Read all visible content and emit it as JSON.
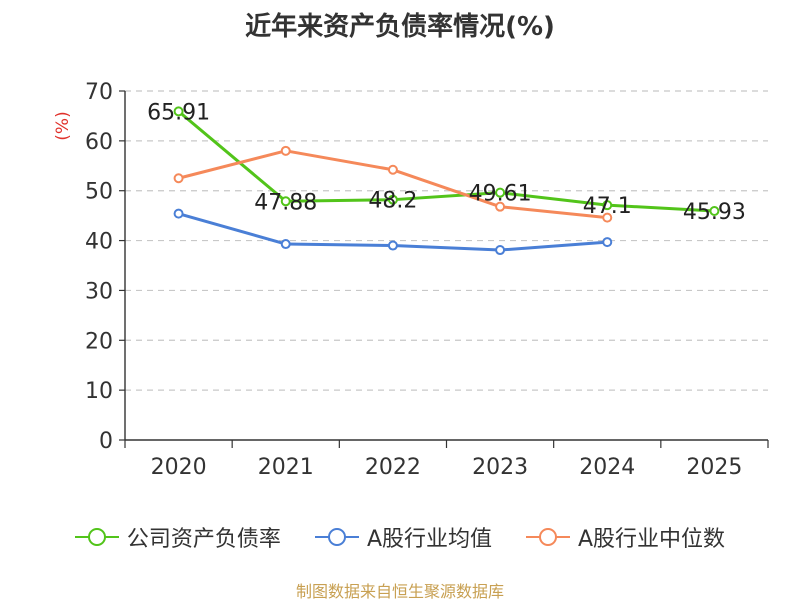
{
  "chart_data": {
    "type": "line",
    "title": "近年来资产负债率情况(%)",
    "ylabel": "(%)",
    "xlabel": "",
    "categories": [
      "2020",
      "2021",
      "2022",
      "2023",
      "2024",
      "2025"
    ],
    "ylim": [
      0,
      70
    ],
    "yticks": [
      0,
      10,
      20,
      30,
      40,
      50,
      60,
      70
    ],
    "grid": true,
    "legend_position": "bottom",
    "series": [
      {
        "name": "公司资产负债率",
        "color": "#52c41a",
        "values": [
          65.91,
          47.88,
          48.2,
          49.61,
          47.1,
          45.93
        ],
        "labels": [
          "65.91",
          "47.88",
          "48.2",
          "49.61",
          "47.1",
          "45.93"
        ]
      },
      {
        "name": "A股行业均值",
        "color": "#4a7fd6",
        "values": [
          45.4,
          39.3,
          39.0,
          38.1,
          39.7,
          null
        ]
      },
      {
        "name": "A股行业中位数",
        "color": "#f5895a",
        "values": [
          52.5,
          58.0,
          54.2,
          46.8,
          44.6,
          null
        ]
      }
    ]
  },
  "source_note": "制图数据来自恒生聚源数据库"
}
